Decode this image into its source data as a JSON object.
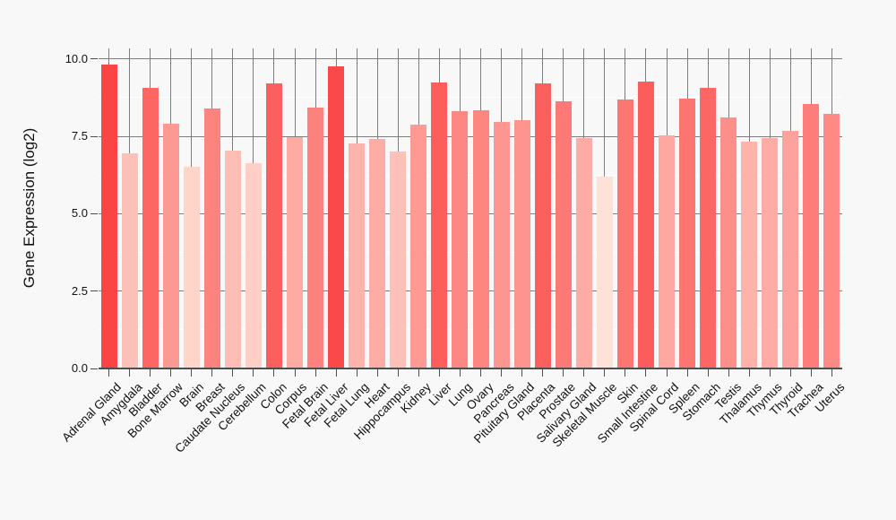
{
  "chart_data": {
    "type": "bar",
    "title": "",
    "ylabel": "Gene Expression (log2)",
    "xlabel": "",
    "categories": [
      "Adrenal Gland",
      "Amygdala",
      "Bladder",
      "Bone Marrow",
      "Brain",
      "Breast",
      "Caudate Nucleus",
      "Cerebellum",
      "Colon",
      "Corpus",
      "Fetal Brain",
      "Fetal Liver",
      "Fetal Lung",
      "Heart",
      "Hippocampus",
      "Kidney",
      "Liver",
      "Lung",
      "Ovary",
      "Pancreas",
      "Pituitary Gland",
      "Placenta",
      "Prostate",
      "Salivary Gland",
      "Skeletal Muscle",
      "Skin",
      "Small Intestine",
      "Spinal Cord",
      "Spleen",
      "Stomach",
      "Testis",
      "Thalamus",
      "Thymus",
      "Thyroid",
      "Trachea",
      "Uterus"
    ],
    "values": [
      9.82,
      6.96,
      9.07,
      7.9,
      6.52,
      8.4,
      7.03,
      6.64,
      9.2,
      7.48,
      8.43,
      9.75,
      7.27,
      7.42,
      7.0,
      7.87,
      9.25,
      8.3,
      8.33,
      7.96,
      8.01,
      9.2,
      8.62,
      7.45,
      6.21,
      8.7,
      9.26,
      7.54,
      8.72,
      9.06,
      8.11,
      7.32,
      7.45,
      7.68,
      8.54,
      8.23
    ],
    "ylim": [
      0,
      10.34
    ],
    "yticks": [
      {
        "value": 0,
        "label": "0.0"
      },
      {
        "value": 2.5,
        "label": "2.5"
      },
      {
        "value": 5,
        "label": "5.0"
      },
      {
        "value": 7.5,
        "label": "7.5"
      },
      {
        "value": 10,
        "label": "10.0"
      }
    ],
    "y_minor_ticks": [
      1.25,
      3.75,
      6.25,
      8.75
    ],
    "grid": true,
    "legend": false,
    "bar_color_by_value": true,
    "color_scale": {
      "type": "linear",
      "domain": [
        6.21,
        9.82
      ],
      "min_color": "#ffe2d7",
      "max_color": "#fb4545"
    },
    "colors": {
      "background": "#f8f8f8",
      "plot_background": "#f8f8f8",
      "major_gridline": "#7d7d7d",
      "minor_gridline": "#ffffff",
      "category_gridline": "#7d7d7d",
      "axis_line": "#4d4d4d",
      "tick_mark": "#4d4d4d",
      "text": "#111111"
    }
  }
}
